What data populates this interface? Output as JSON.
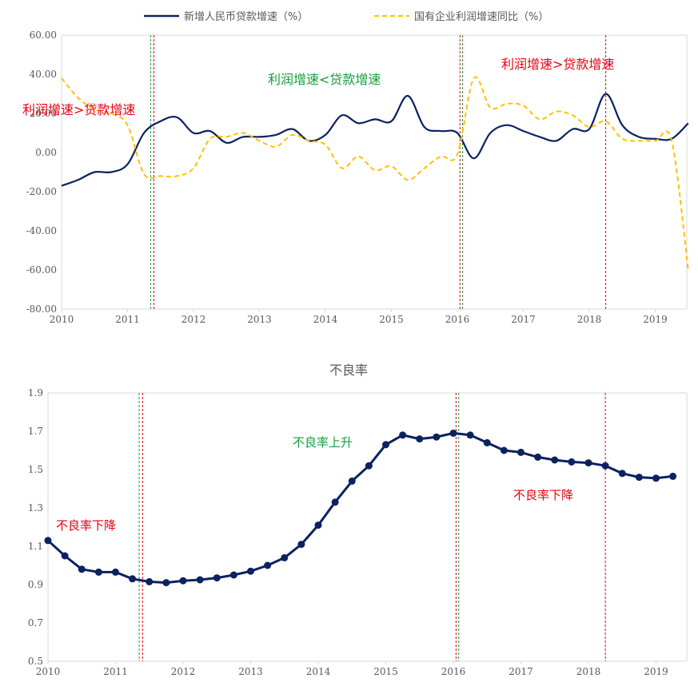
{
  "colors": {
    "loan": "#0b2260",
    "profit": "#ffc000",
    "red": "#e60012",
    "green": "#12a03c",
    "axis": "#d9d9d9",
    "text": "#595959"
  },
  "chart_data": [
    {
      "type": "line",
      "title": "",
      "legend": {
        "placement": "top"
      },
      "x_ticks": [
        "2010",
        "2011",
        "2012",
        "2013",
        "2014",
        "2015",
        "2016",
        "2017",
        "2018",
        "2019"
      ],
      "xlim": [
        2010,
        2019.5
      ],
      "y_ticks": [
        "60.00",
        "40.00",
        "20.00",
        "0.00",
        "-20.00",
        "-40.00",
        "-60.00",
        "-80.00"
      ],
      "ylim": [
        -80,
        60
      ],
      "series": [
        {
          "name": "新增人民币贷款增速（%）",
          "style": "solid",
          "x": [
            2010.0,
            2010.25,
            2010.5,
            2010.75,
            2011.0,
            2011.25,
            2011.5,
            2011.75,
            2012.0,
            2012.25,
            2012.5,
            2012.75,
            2013.0,
            2013.25,
            2013.5,
            2013.75,
            2014.0,
            2014.25,
            2014.5,
            2014.75,
            2015.0,
            2015.25,
            2015.5,
            2015.75,
            2016.0,
            2016.25,
            2016.5,
            2016.75,
            2017.0,
            2017.25,
            2017.5,
            2017.75,
            2018.0,
            2018.25,
            2018.5,
            2018.75,
            2019.0,
            2019.25,
            2019.5
          ],
          "y": [
            -17,
            -14,
            -10,
            -10,
            -6,
            10,
            16,
            18,
            10,
            11,
            5,
            8,
            8,
            9,
            12,
            6,
            9,
            19,
            15,
            17,
            16,
            29,
            13,
            11,
            10,
            -3,
            10,
            14,
            11,
            8,
            6,
            12,
            12,
            30,
            14,
            8,
            7,
            7,
            15
          ]
        },
        {
          "name": "国有企业利润增速同比（%）",
          "style": "dashed",
          "x": [
            2010.0,
            2010.25,
            2010.5,
            2010.75,
            2011.0,
            2011.25,
            2011.5,
            2011.75,
            2012.0,
            2012.25,
            2012.5,
            2012.75,
            2013.0,
            2013.25,
            2013.5,
            2013.75,
            2014.0,
            2014.25,
            2014.5,
            2014.75,
            2015.0,
            2015.25,
            2015.5,
            2015.75,
            2016.0,
            2016.25,
            2016.5,
            2016.75,
            2017.0,
            2017.25,
            2017.5,
            2017.75,
            2018.0,
            2018.25,
            2018.5,
            2018.75,
            2019.0,
            2019.25,
            2019.5
          ],
          "y": [
            38,
            28,
            22,
            20,
            14,
            -11,
            -12,
            -12,
            -8,
            7,
            8,
            10,
            6,
            3,
            9,
            6,
            4,
            -8,
            -2,
            -9,
            -7,
            -14,
            -8,
            -2,
            -1,
            38,
            23,
            25,
            24,
            17,
            21,
            19,
            13,
            16,
            7,
            6,
            6,
            6,
            -60
          ]
        }
      ],
      "annotations": [
        {
          "text": "利润增速>贷款增速",
          "color": "red"
        },
        {
          "text": "利润增速<贷款增速",
          "color": "green"
        },
        {
          "text": "利润增速>贷款增速",
          "color": "red"
        }
      ],
      "markers": [
        {
          "x": 2011.35,
          "color": "green"
        },
        {
          "x": 2011.4,
          "color": "red"
        },
        {
          "x": 2016.04,
          "color": "red"
        },
        {
          "x": 2016.08,
          "color": "green"
        },
        {
          "x": 2018.25,
          "color": "red"
        }
      ]
    },
    {
      "type": "line",
      "title": "不良率",
      "x_ticks": [
        "2010",
        "2011",
        "2012",
        "2013",
        "2014",
        "2015",
        "2016",
        "2017",
        "2018",
        "2019"
      ],
      "xlim": [
        2010,
        2019.5
      ],
      "y_ticks": [
        "1.9",
        "1.7",
        "1.5",
        "1.3",
        "1.1",
        "0.9",
        "0.7",
        "0.5"
      ],
      "ylim": [
        0.5,
        1.9
      ],
      "series": [
        {
          "name": "",
          "style": "solid-markers",
          "x": [
            2010.0,
            2010.25,
            2010.5,
            2010.75,
            2011.0,
            2011.25,
            2011.5,
            2011.75,
            2012.0,
            2012.25,
            2012.5,
            2012.75,
            2013.0,
            2013.25,
            2013.5,
            2013.75,
            2014.0,
            2014.25,
            2014.5,
            2014.75,
            2015.0,
            2015.25,
            2015.5,
            2015.75,
            2016.0,
            2016.25,
            2016.5,
            2016.75,
            2017.0,
            2017.25,
            2017.5,
            2017.75,
            2018.0,
            2018.25,
            2018.5,
            2018.75,
            2019.0,
            2019.25
          ],
          "y": [
            1.13,
            1.05,
            0.98,
            0.965,
            0.965,
            0.93,
            0.915,
            0.91,
            0.92,
            0.925,
            0.935,
            0.95,
            0.97,
            1.0,
            1.04,
            1.11,
            1.21,
            1.33,
            1.44,
            1.52,
            1.63,
            1.68,
            1.66,
            1.67,
            1.69,
            1.68,
            1.64,
            1.6,
            1.59,
            1.565,
            1.55,
            1.54,
            1.535,
            1.52,
            1.48,
            1.46,
            1.455,
            1.465
          ]
        }
      ],
      "annotations": [
        {
          "text": "不良率下降",
          "color": "red"
        },
        {
          "text": "不良率上升",
          "color": "green"
        },
        {
          "text": "不良率下降",
          "color": "red"
        }
      ],
      "markers": [
        {
          "x": 2011.35,
          "color": "green"
        },
        {
          "x": 2011.4,
          "color": "red"
        },
        {
          "x": 2016.04,
          "color": "red"
        },
        {
          "x": 2016.08,
          "color": "green"
        },
        {
          "x": 2018.25,
          "color": "red"
        }
      ]
    }
  ]
}
